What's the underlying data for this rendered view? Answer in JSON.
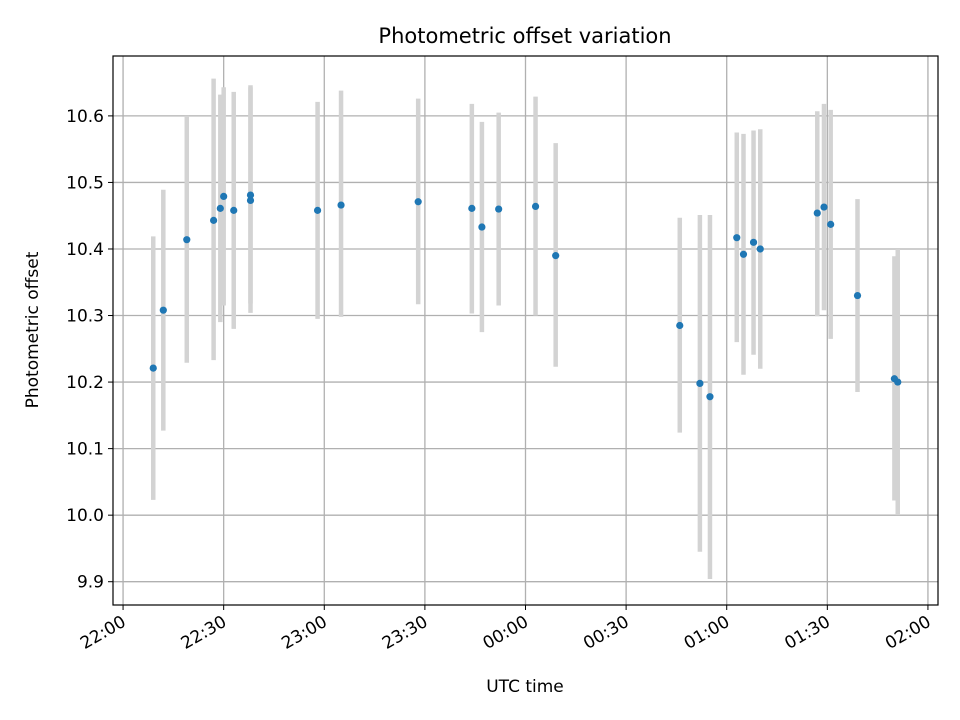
{
  "chart_data": {
    "type": "scatter",
    "title": "Photometric offset variation",
    "xlabel": "UTC time",
    "ylabel": "Photometric offset",
    "grid": true,
    "x_tick_labels": [
      "22:00",
      "22:30",
      "23:00",
      "23:30",
      "00:00",
      "00:30",
      "01:00",
      "01:30",
      "02:00"
    ],
    "y_tick_labels": [
      "9.9",
      "10.0",
      "10.1",
      "10.2",
      "10.3",
      "10.4",
      "10.5",
      "10.6"
    ],
    "ylim": [
      9.865,
      10.69
    ],
    "xlim": [
      "21:57",
      "02:03"
    ],
    "series": [
      {
        "color": "#1f77b4",
        "errorbar_color": "#d3d3d3",
        "points": [
          {
            "x": "22:09",
            "y": 10.221,
            "ylow": 10.023,
            "yhigh": 10.419
          },
          {
            "x": "22:12",
            "y": 10.308,
            "ylow": 10.127,
            "yhigh": 10.489
          },
          {
            "x": "22:19",
            "y": 10.414,
            "ylow": 10.229,
            "yhigh": 10.6
          },
          {
            "x": "22:27",
            "y": 10.443,
            "ylow": 10.233,
            "yhigh": 10.656
          },
          {
            "x": "22:29",
            "y": 10.461,
            "ylow": 10.29,
            "yhigh": 10.632
          },
          {
            "x": "22:30",
            "y": 10.479,
            "ylow": 10.315,
            "yhigh": 10.643
          },
          {
            "x": "22:33",
            "y": 10.458,
            "ylow": 10.28,
            "yhigh": 10.636
          },
          {
            "x": "22:38",
            "y": 10.473,
            "ylow": 10.304,
            "yhigh": 10.643
          },
          {
            "x": "22:38",
            "y": 10.481,
            "ylow": 10.318,
            "yhigh": 10.646
          },
          {
            "x": "22:58",
            "y": 10.458,
            "ylow": 10.295,
            "yhigh": 10.621
          },
          {
            "x": "23:05",
            "y": 10.466,
            "ylow": 10.298,
            "yhigh": 10.638
          },
          {
            "x": "23:28",
            "y": 10.471,
            "ylow": 10.317,
            "yhigh": 10.626
          },
          {
            "x": "23:44",
            "y": 10.461,
            "ylow": 10.303,
            "yhigh": 10.618
          },
          {
            "x": "23:47",
            "y": 10.433,
            "ylow": 10.275,
            "yhigh": 10.591
          },
          {
            "x": "23:52",
            "y": 10.46,
            "ylow": 10.315,
            "yhigh": 10.605
          },
          {
            "x": "00:03",
            "y": 10.464,
            "ylow": 10.3,
            "yhigh": 10.629
          },
          {
            "x": "00:09",
            "y": 10.39,
            "ylow": 10.223,
            "yhigh": 10.559
          },
          {
            "x": "00:46",
            "y": 10.285,
            "ylow": 10.124,
            "yhigh": 10.447
          },
          {
            "x": "00:52",
            "y": 10.198,
            "ylow": 9.945,
            "yhigh": 10.451
          },
          {
            "x": "00:55",
            "y": 10.178,
            "ylow": 9.904,
            "yhigh": 10.451
          },
          {
            "x": "01:03",
            "y": 10.417,
            "ylow": 10.26,
            "yhigh": 10.575
          },
          {
            "x": "01:05",
            "y": 10.392,
            "ylow": 10.211,
            "yhigh": 10.573
          },
          {
            "x": "01:08",
            "y": 10.41,
            "ylow": 10.241,
            "yhigh": 10.578
          },
          {
            "x": "01:10",
            "y": 10.4,
            "ylow": 10.22,
            "yhigh": 10.58
          },
          {
            "x": "01:27",
            "y": 10.454,
            "ylow": 10.299,
            "yhigh": 10.607
          },
          {
            "x": "01:29",
            "y": 10.463,
            "ylow": 10.308,
            "yhigh": 10.618
          },
          {
            "x": "01:31",
            "y": 10.437,
            "ylow": 10.265,
            "yhigh": 10.609
          },
          {
            "x": "01:39",
            "y": 10.33,
            "ylow": 10.185,
            "yhigh": 10.475
          },
          {
            "x": "01:50",
            "y": 10.205,
            "ylow": 10.022,
            "yhigh": 10.389
          },
          {
            "x": "01:51",
            "y": 10.2,
            "ylow": 10.0,
            "yhigh": 10.4
          }
        ]
      }
    ]
  }
}
